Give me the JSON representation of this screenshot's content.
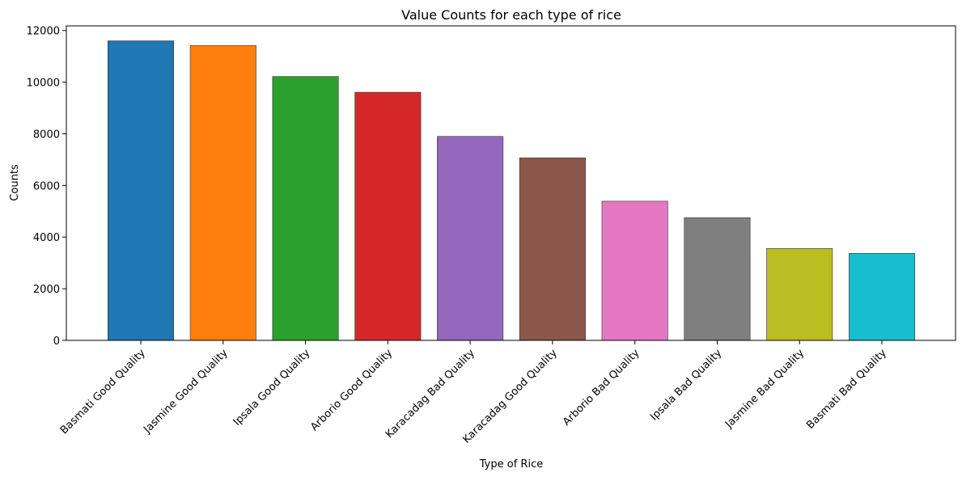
{
  "chart_data": {
    "type": "bar",
    "title": "Value Counts for each type of rice",
    "xlabel": "Type of Rice",
    "ylabel": "Counts",
    "categories": [
      "Basmati Good Quality",
      "Jasmine Good Quality",
      "Ipsala Good Quality",
      "Arborio Good Quality",
      "Karacadag Bad Quality",
      "Karacadag Good Quality",
      "Arborio Bad Quality",
      "Ipsala Bad Quality",
      "Jasmine Bad Quality",
      "Basmati Bad Quality"
    ],
    "values": [
      11600,
      11420,
      10220,
      9610,
      7900,
      7070,
      5390,
      4750,
      3560,
      3370
    ],
    "colors": [
      "#1f77b4",
      "#ff7f0e",
      "#2ca02c",
      "#d62728",
      "#9467bd",
      "#8c564b",
      "#e377c2",
      "#7f7f7f",
      "#bcbd22",
      "#17becf"
    ],
    "yticks": [
      0,
      2000,
      4000,
      6000,
      8000,
      10000,
      12000
    ],
    "ylim": [
      0,
      12180
    ],
    "grid": false,
    "legend": "none"
  }
}
